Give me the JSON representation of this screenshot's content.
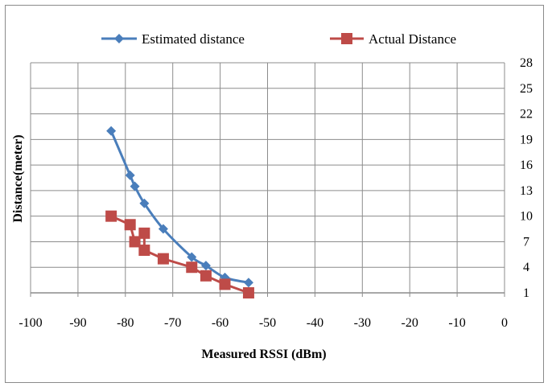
{
  "chart_data": {
    "type": "line",
    "title": "",
    "xlabel": "Measured RSSI  (dBm)",
    "ylabel": "Distance(meter)",
    "xlim": [
      -100,
      0
    ],
    "ylim": [
      1,
      28
    ],
    "x_ticks": [
      "-100",
      "-90",
      "-80",
      "-70",
      "-60",
      "-50",
      "-40",
      "-30",
      "-20",
      "-10",
      "0"
    ],
    "y_ticks": [
      "28",
      "25",
      "22",
      "19",
      "16",
      "13",
      "10",
      "7",
      "4",
      "1"
    ],
    "y_tick_values": [
      28,
      25,
      22,
      19,
      16,
      13,
      10,
      7,
      4,
      1
    ],
    "x_tick_values": [
      -100,
      -90,
      -80,
      -70,
      -60,
      -50,
      -40,
      -30,
      -20,
      -10,
      0
    ],
    "grid": true,
    "legend_position": "top",
    "series": [
      {
        "name": "Estimated distance",
        "color": "#4a7ebb",
        "marker": "diamond",
        "x": [
          -83,
          -79,
          -78,
          -76,
          -72,
          -66,
          -63,
          -59,
          -54
        ],
        "y": [
          20,
          14.8,
          13.5,
          11.5,
          8.5,
          5.2,
          4.2,
          2.8,
          2.2
        ]
      },
      {
        "name": "Actual Distance",
        "color": "#be4b48",
        "marker": "square",
        "x": [
          -83,
          -79,
          -78,
          -76,
          -76,
          -72,
          -66,
          -63,
          -59,
          -54
        ],
        "y": [
          10,
          9,
          7,
          8,
          6,
          5,
          4,
          3,
          2,
          1
        ]
      }
    ]
  }
}
